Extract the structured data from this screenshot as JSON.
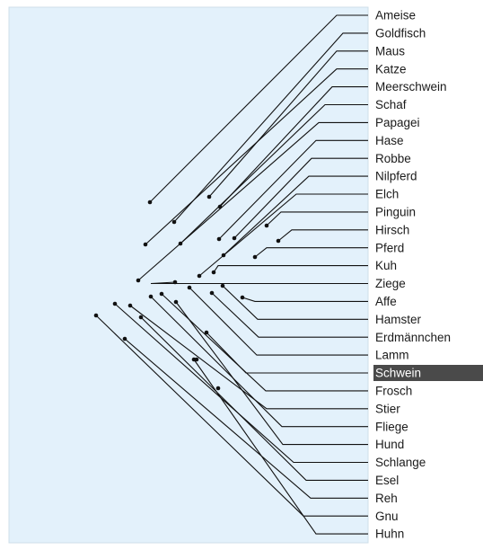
{
  "diagram": {
    "selected_label": "Schwein",
    "colors": {
      "panel": "#e3f1fb",
      "line": "#111111",
      "highlight": "#4a4a4a"
    },
    "labels": [
      "Ameise",
      "Goldfisch",
      "Maus",
      "Katze",
      "Meerschwein",
      "Schaf",
      "Papagei",
      "Hase",
      "Robbe",
      "Nilpferd",
      "Elch",
      "Pinguin",
      "Hirsch",
      "Pferd",
      "Kuh",
      "Ziege",
      "Affe",
      "Hamster",
      "Erdmännchen",
      "Lamm",
      "Schwein",
      "Frosch",
      "Stier",
      "Fliege",
      "Hund",
      "Schlange",
      "Esel",
      "Reh",
      "Gnu",
      "Huhn"
    ]
  }
}
